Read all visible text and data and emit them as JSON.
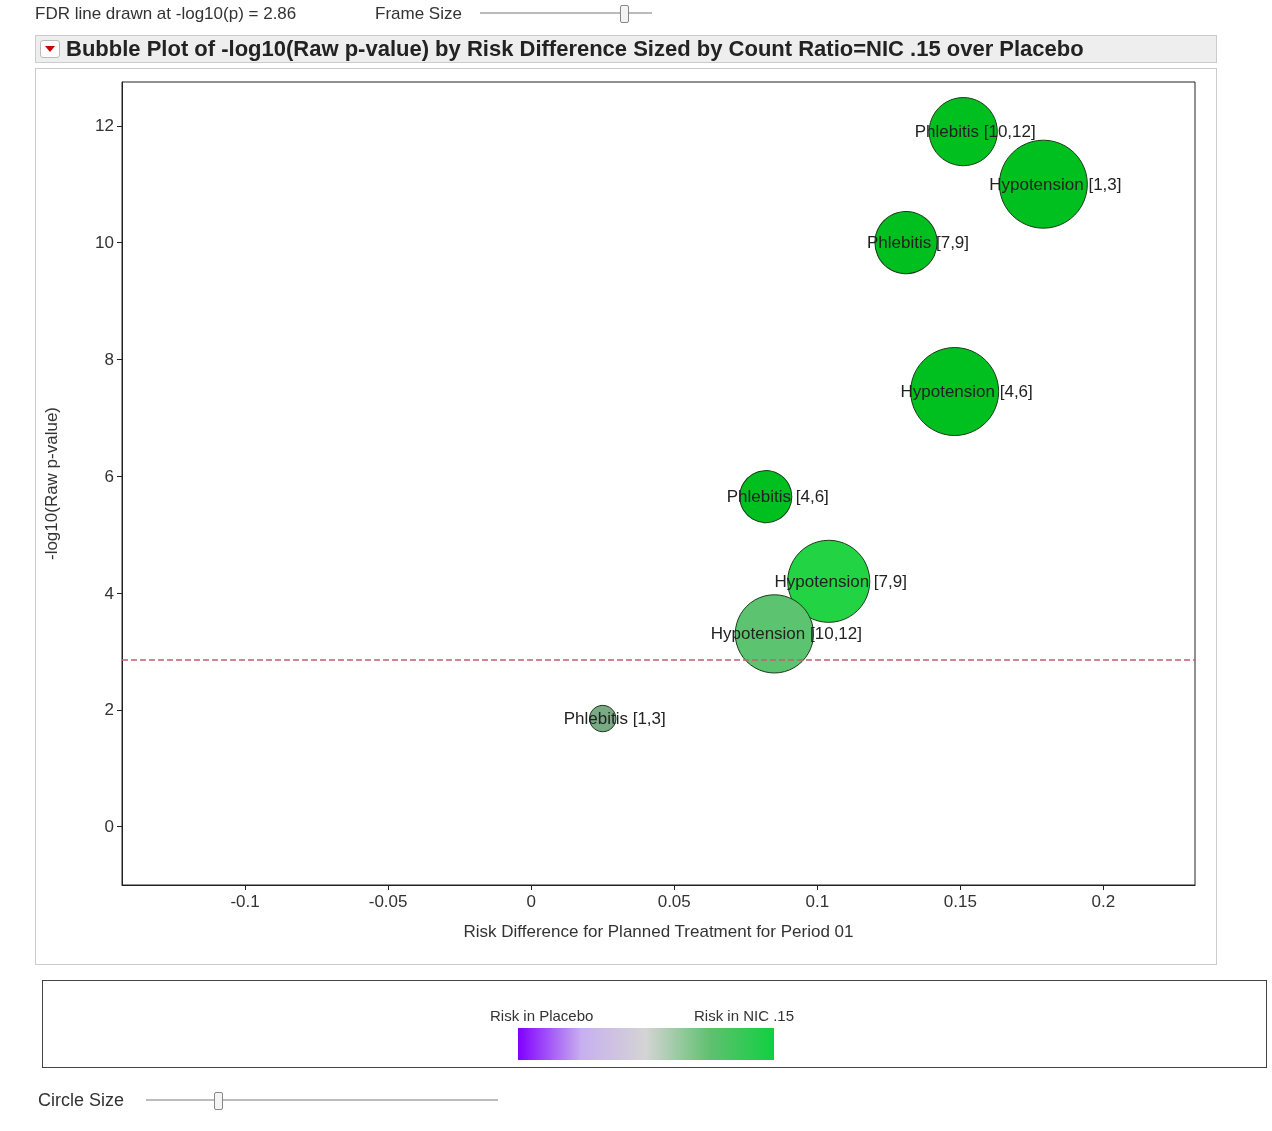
{
  "chart_data": {
    "type": "bubble",
    "title": "Bubble Plot of -log10(Raw p-value) by Risk Difference Sized by Count Ratio=NIC .15 over Placebo",
    "xlabel": "Risk Difference for Planned Treatment for Period 01",
    "ylabel": "-log10(Raw p-value)",
    "x": [
      0.151,
      0.179,
      0.131,
      0.148,
      0.082,
      0.104,
      0.085,
      0.025
    ],
    "values": [
      11.9,
      11.0,
      10.0,
      7.45,
      5.65,
      4.2,
      3.3,
      1.85
    ],
    "sizes": [
      0.6,
      1,
      0.5,
      1,
      0.35,
      0.87,
      0.79,
      0.09
    ],
    "colors": [
      "#00c020",
      "#00c020",
      "#00c020",
      "#00c020",
      "#00c020",
      "#22d444",
      "#5cc470",
      "#7aaa84"
    ],
    "xlim": [
      -0.143,
      0.232
    ],
    "xticks": [
      -0.1,
      -0.05,
      0,
      0.05,
      0.1,
      0.15,
      0.2
    ],
    "ylim": [
      -1,
      12.75
    ],
    "yticks": [
      0,
      2,
      4,
      6,
      8,
      10,
      12
    ],
    "grid": false,
    "marker": "circle",
    "ref_lines": [
      {
        "axis": "y",
        "value": 2.86,
        "color": "#c06070",
        "line_style": "dashed"
      }
    ],
    "annotations": [
      {
        "text": "Phlebitis [10,12]",
        "x": 0.151,
        "y": 11.9
      },
      {
        "text": "Hypotension [1,3]",
        "x": 0.179,
        "y": 11.0
      },
      {
        "text": "Phlebitis [7,9]",
        "x": 0.131,
        "y": 10.0
      },
      {
        "text": "Hypotension [4,6]",
        "x": 0.148,
        "y": 7.45
      },
      {
        "text": "Phlebitis [4,6]",
        "x": 0.082,
        "y": 5.65
      },
      {
        "text": "Hypotension [7,9]",
        "x": 0.104,
        "y": 4.2
      },
      {
        "text": "Hypotension [10,12]",
        "x": 0.085,
        "y": 3.3
      },
      {
        "text": "Phlebitis [1,3]",
        "x": 0.025,
        "y": 1.85
      },
      "FDR line drawn at -log10(p) = 2.86",
      "Frame Size",
      "Risk in Placebo",
      "Risk in NIC .15",
      "Circle Size"
    ]
  }
}
